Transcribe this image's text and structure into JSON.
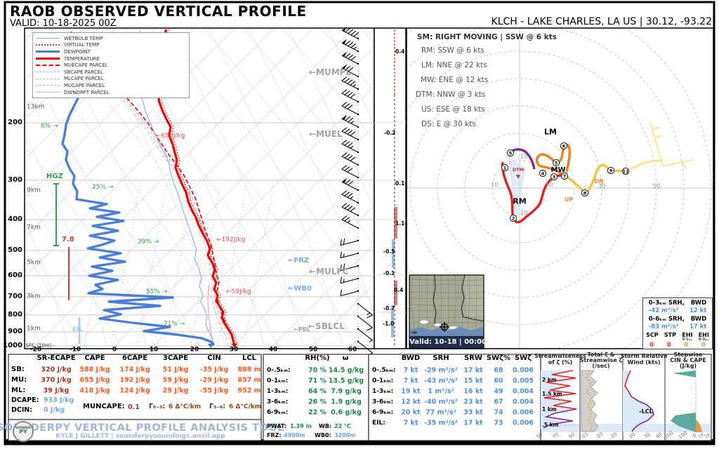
{
  "header": {
    "title": "RAOB OBSERVED VERTICAL PROFILE",
    "valid": "VALID: 10-18-2025 00Z",
    "station": "KLCH - LAKE CHARLES, LA US | 30.12, -93.22"
  },
  "skewt": {
    "legend": [
      {
        "label": "WETBULB TEMP",
        "color": "#8fb1e8",
        "style": "thin"
      },
      {
        "label": "VIRTUAL TEMP",
        "color": "#d43d2a",
        "style": "dotted"
      },
      {
        "label": "DEWPOINT",
        "color": "#4a7fd4",
        "style": "thick"
      },
      {
        "label": "TEMPERATURE",
        "color": "#f00000",
        "style": "thick"
      },
      {
        "label": "MUECAPE PARCEL",
        "color": "#f00000",
        "style": "dashed-thick"
      },
      {
        "label": "SBCAPE PARCEL",
        "color": "#b0b0b0",
        "style": "dashed"
      },
      {
        "label": "MLCAPE PARCEL",
        "color": "#b0b0b0",
        "style": "dashed"
      },
      {
        "label": "MUCAPE PARCEL",
        "color": "#b0b0b0",
        "style": "dashed"
      },
      {
        "label": "DWNDRFT PARCEL",
        "color": "#e8b4c0",
        "style": "thin"
      }
    ],
    "pressure_labels": [
      "200",
      "300",
      "400",
      "500",
      "600",
      "700",
      "800",
      "900",
      "1000"
    ],
    "surface_label": "-SFC (10m) -",
    "height_labels": [
      "13km",
      "9km",
      "7km",
      "5km",
      "3km",
      "1km"
    ],
    "x_tick_labels": [
      "-20",
      "-10",
      "0",
      "10",
      "20",
      "30",
      "40",
      "50",
      "60"
    ],
    "annotations": {
      "rh_6": "6% →",
      "rh_25": "25% →",
      "rh_39": "39% →",
      "rh_55": "55% →",
      "rh_71": "71% →",
      "hgz": "HGZ",
      "lr_78": "7.8",
      "eil": "EIL",
      "cape_655": "←655J/kg",
      "cape_192": "←192J/kg",
      "cape_59": "←59J/kg",
      "frz": "←FRZ",
      "wb0": "←WB0",
      "mulfc": "←MULFC",
      "sblcl": "←SBLCL",
      "pbl": "←PBL",
      "mumpl": "←MUMPL",
      "muel": "←MUEL"
    }
  },
  "advection": {
    "values": [
      "0.4",
      "-0.2",
      "0.1",
      "1.1",
      "-0.5",
      "-0.1",
      "0.4",
      "-0.7",
      "-1.0"
    ]
  },
  "hodograph": {
    "motion_lines": [
      "SM: RIGHT MOVING | SSW @ 6 kts",
      "RM: SSW @ 6 kts",
      "LM: NNE @ 22 kts",
      "MW: ENE @ 12 kts",
      "DTM: NNW @ 3 kts",
      "US: ESE @ 18 kts",
      "DS: E @ 30 kts"
    ],
    "ring_labels": {
      "r10": "10",
      "r30": "30",
      "r50": "50"
    },
    "point_labels": {
      "rm": "RM",
      "lm": "LM",
      "mw": "MW",
      "dtm": "DTM",
      "dn": "DN",
      "up": "UP"
    },
    "markers": [
      "1",
      "2",
      "3",
      "4",
      "5",
      "5",
      "6",
      "7",
      "8",
      "9",
      "11"
    ]
  },
  "map": {
    "valid_label": "Valid: 10-18 | 00:00"
  },
  "srh_box": {
    "line1": "0-3ₖₘ SRH,   BWD",
    "srh1": "-42 m²/s²",
    "bwd1": "12 kt",
    "line2": "0-6ₖₘ SRH,   BWD",
    "srh2": "-83 m²/s²",
    "bwd2": "17 kt",
    "idx_labels": [
      "SCP",
      "STP",
      "EHI",
      "EHI"
    ],
    "idx_subs": [
      "",
      "",
      "0-1ₖₘ",
      "0-3ₖₘ"
    ],
    "idx_values": [
      "0",
      "0",
      "0",
      "0"
    ]
  },
  "thermo": {
    "headers": [
      "SR-ECAPE",
      "CAPE",
      "6CAPE",
      "3CAPE",
      "CIN",
      "LCL"
    ],
    "rows": [
      {
        "label": "SB:",
        "values": [
          "320 J/kg",
          "588 J/kg",
          "174 J/kg",
          "51 J/kg",
          "-35 J/kg",
          "888 m"
        ]
      },
      {
        "label": "MU:",
        "values": [
          "370 J/kg",
          "655 J/kg",
          "192 J/kg",
          "59 J/kg",
          "-29 J/kg",
          "857 m"
        ]
      },
      {
        "label": "ML:",
        "values": [
          "39 J/kg",
          "418 J/kg",
          "124 J/kg",
          "29 J/kg",
          "-55 J/kg",
          "952 m"
        ]
      }
    ],
    "dcape_label": "DCAPE:",
    "dcape": "933 J/kg",
    "dcin_label": "DCIN:",
    "dcin": "0 J/kg",
    "muncape_label": "MUNCAPE:",
    "muncape": "0.1",
    "gamma03_label": "Γ₀₋₃:",
    "gamma03": "6 Δ°C/km",
    "gamma36_label": "Γ₃₋₆:",
    "gamma36": "6 Δ°C/km"
  },
  "moisture": {
    "headers": [
      "RH(%)",
      "ω"
    ],
    "rows": [
      {
        "label": "0-.5ₖₘ:",
        "values": [
          "70 %",
          "14.5 g/kg"
        ]
      },
      {
        "label": "0-1ₖₘ:",
        "values": [
          "71 %",
          "13.5 g/kg"
        ]
      },
      {
        "label": "1-3ₖₘ:",
        "values": [
          "64 %",
          "7.9 g/kg"
        ]
      },
      {
        "label": "3-6ₖₘ:",
        "values": [
          "26 %",
          "1.9 g/kg"
        ]
      },
      {
        "label": "6-9ₖₘ:",
        "values": [
          "22 %",
          "0.6 g/kg"
        ]
      }
    ],
    "pwat_label": "PWAT:",
    "pwat": "1.39 in",
    "wb_label": "WB:",
    "wb": "22 °C",
    "frz_label": "FRZ:",
    "frz": "4900m",
    "wb0_label": "WB0:",
    "wb0": "3200m"
  },
  "kinematics": {
    "headers": [
      "BWD",
      "SRH",
      "SRW",
      "SWζ%",
      "SWζ"
    ],
    "rows": [
      {
        "label": "0-.5ₖₘ:",
        "values": [
          "7 kt",
          "-29 m²/s²",
          "17 kt",
          "68",
          "0.006"
        ]
      },
      {
        "label": "0-1ₖₘ:",
        "values": [
          "7 kt",
          "-43 m²/s²",
          "15 kt",
          "60",
          "0.005"
        ]
      },
      {
        "label": "1-3ₖₘ:",
        "values": [
          "19 kt",
          "1 m²/s²",
          "16 kt",
          "49",
          "0.004"
        ]
      },
      {
        "label": "3-6ₖₘ:",
        "values": [
          "12 kt",
          "-40 m²/s²",
          "23 kt",
          "67",
          "0.004"
        ]
      },
      {
        "label": "6-9ₖₘ:",
        "values": [
          "20 kt",
          "77 m²/s²",
          "33 kt",
          "74",
          "0.006"
        ]
      },
      {
        "label": "EIL:",
        "values": [
          "7 kt",
          "-35 m²/s²",
          "17 kt",
          "73",
          "0.006"
        ]
      }
    ]
  },
  "panels": [
    {
      "title": [
        "Streamwiseness",
        "of ζ (%)"
      ],
      "ticks": [
        "50",
        "70",
        "90"
      ],
      "height_labels": [
        "2 km",
        "1.5 km",
        "1 km",
        ".5 km"
      ]
    },
    {
      "title": [
        "Total ζ &",
        "Streamwise ζ",
        "(/sec)"
      ],
      "ticks": [
        ".01",
        ".03",
        ".05"
      ]
    },
    {
      "title": [
        "Storm Relative",
        "Wind (kts)"
      ],
      "ticks": [
        "20",
        "30",
        "40"
      ],
      "lcl_label": "-LCL"
    },
    {
      "title": [
        "Stepwise",
        "CIN & CAPE",
        "(J/kg)"
      ],
      "ticks": [
        "-200",
        "-100",
        "0",
        "1k",
        "2k"
      ]
    }
  ],
  "branding": {
    "title": "SOUNDERPY VERTICAL PROFILE ANALYSIS TOOL",
    "subtitle": "KYLE J GILLETT | sounderpysoundings.anvil.app",
    "logo_top": "SOUNDER",
    "logo_main": "PY"
  },
  "colors": {
    "temperature": "#f00000",
    "dewpoint": "#4a7fd4",
    "wetbulb": "#8fb1e8",
    "parcel_gray": "#b0b0b0",
    "table_orange": "#ff5a1f",
    "table_darkred": "#9e3a26",
    "table_blue": "#4f8fdd",
    "table_green": "#1e8449",
    "light_blue": "#7aa9e6",
    "annotation_green": "#33a04a",
    "hodo_red": "#e02020",
    "hodo_orange": "#f08018",
    "hodo_gold": "#f5c342",
    "hodo_pale": "#fae8a0",
    "hodo_purple": "#7a2d8c"
  },
  "chart_data": {
    "type": "skewt_log_p_sounding_with_hodograph",
    "title": "RAOB OBSERVED VERTICAL PROFILE",
    "station": "KLCH - LAKE CHARLES, LA US",
    "lat_lon": [
      30.12,
      -93.22
    ],
    "valid": "2025-10-18 00Z",
    "skewt_axes": {
      "pressure_hPa": [
        100,
        1000
      ],
      "temperature_C": [
        -20,
        60
      ]
    },
    "storm_motion": {
      "SM": "RIGHT MOVING | SSW @ 6 kts",
      "RM": "SSW @ 6 kts",
      "LM": "NNE @ 22 kts",
      "MW": "ENE @ 12 kts",
      "DTM": "NNW @ 3 kts",
      "US": "ESE @ 18 kts",
      "DS": "E @ 30 kts"
    },
    "hodograph_rings_kt": [
      10,
      20,
      30,
      40,
      50
    ],
    "parcels": [
      {
        "parcel": "SB",
        "sr_ecape": 320,
        "cape": 588,
        "cape6": 174,
        "cape3": 51,
        "cin": -35,
        "lcl_m": 888
      },
      {
        "parcel": "MU",
        "sr_ecape": 370,
        "cape": 655,
        "cape6": 192,
        "cape3": 59,
        "cin": -29,
        "lcl_m": 857
      },
      {
        "parcel": "ML",
        "sr_ecape": 39,
        "cape": 418,
        "cape6": 124,
        "cape3": 29,
        "cin": -55,
        "lcl_m": 952
      }
    ],
    "dcape": 933,
    "dcin": 0,
    "muncape": 0.1,
    "lapse_0_3_km": "6 Δ°C/km",
    "lapse_3_6_km": "6 Δ°C/km",
    "moisture": [
      {
        "layer": "0-.5km",
        "rh_pct": 70,
        "w_gkg": 14.5
      },
      {
        "layer": "0-1km",
        "rh_pct": 71,
        "w_gkg": 13.5
      },
      {
        "layer": "1-3km",
        "rh_pct": 64,
        "w_gkg": 7.9
      },
      {
        "layer": "3-6km",
        "rh_pct": 26,
        "w_gkg": 1.9
      },
      {
        "layer": "6-9km",
        "rh_pct": 22,
        "w_gkg": 0.6
      }
    ],
    "pwat_in": 1.39,
    "wb_C": 22,
    "frz_m": 4900,
    "wb0_m": 3200,
    "kinematics": [
      {
        "layer": "0-.5km",
        "bwd_kt": 7,
        "srh": -29,
        "srw_kt": 17,
        "swzeta_pct": 68,
        "swzeta": 0.006
      },
      {
        "layer": "0-1km",
        "bwd_kt": 7,
        "srh": -43,
        "srw_kt": 15,
        "swzeta_pct": 60,
        "swzeta": 0.005
      },
      {
        "layer": "1-3km",
        "bwd_kt": 19,
        "srh": 1,
        "srw_kt": 16,
        "swzeta_pct": 49,
        "swzeta": 0.004
      },
      {
        "layer": "3-6km",
        "bwd_kt": 12,
        "srh": -40,
        "srw_kt": 23,
        "swzeta_pct": 67,
        "swzeta": 0.004
      },
      {
        "layer": "6-9km",
        "bwd_kt": 20,
        "srh": 77,
        "srw_kt": 33,
        "swzeta_pct": 74,
        "swzeta": 0.006
      },
      {
        "layer": "EIL",
        "bwd_kt": 7,
        "srh": -35,
        "srw_kt": 17,
        "swzeta_pct": 73,
        "swzeta": 0.006
      }
    ],
    "srh_bwd_summary": {
      "srh_0_3": -42,
      "bwd_0_3_kt": 12,
      "srh_0_6": -83,
      "bwd_0_6_kt": 17,
      "scp": 0,
      "stp": 0,
      "ehi_0_1": 0,
      "ehi_0_3": 0
    },
    "inferred_temp_advection": [
      0.4,
      -0.2,
      0.1,
      1.1,
      -0.5,
      -0.1,
      0.4,
      -0.7,
      -1.0
    ],
    "surface_approx": {
      "temp_C": 30,
      "dewpoint_C": 23
    }
  }
}
